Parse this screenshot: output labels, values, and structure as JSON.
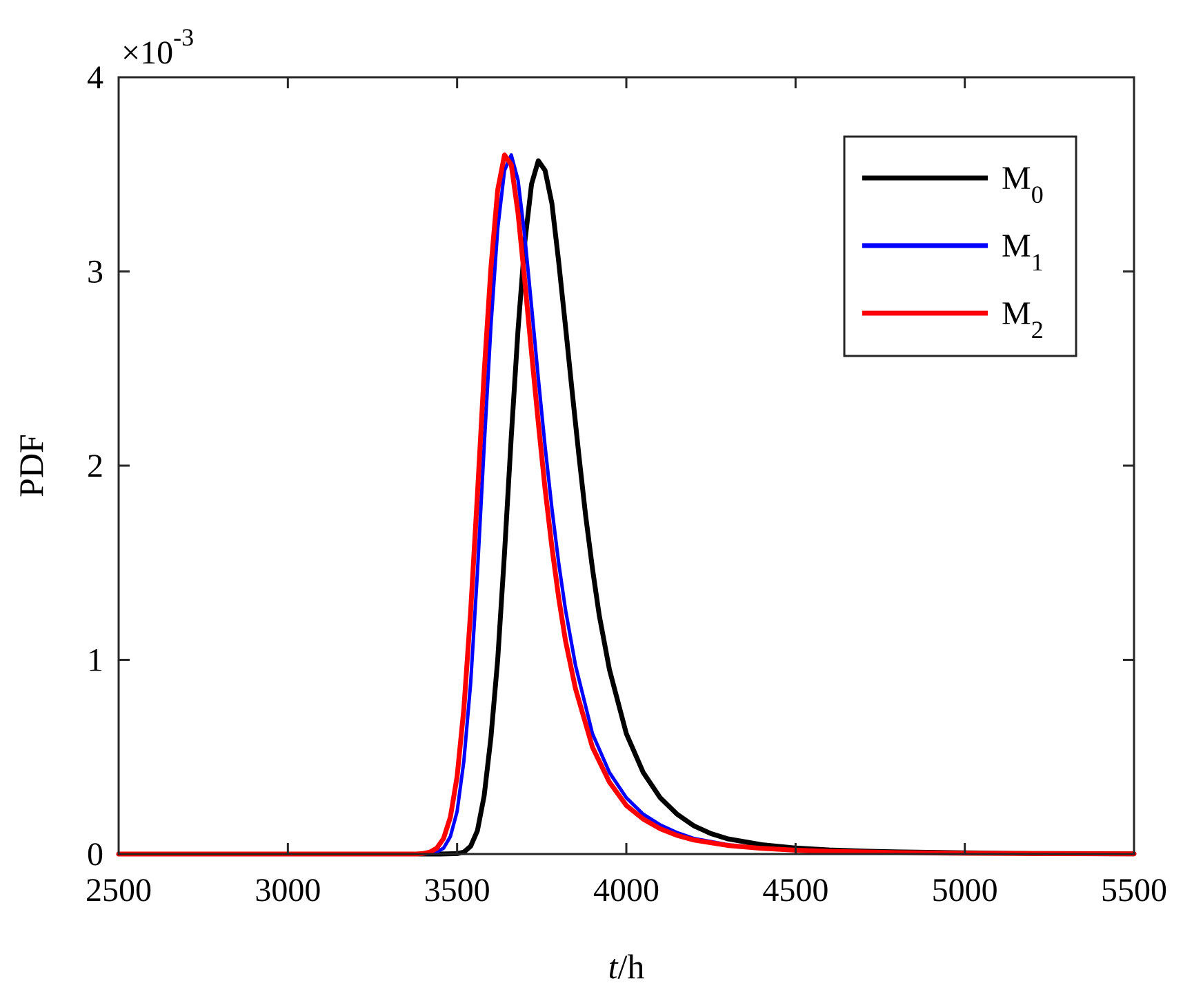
{
  "chart_data": {
    "type": "line",
    "xlabel_italic": "t",
    "xlabel_rest": "/h",
    "ylabel": "PDF",
    "y_multiplier_base": "×10",
    "y_multiplier_exp": "-3",
    "xlim": [
      2500,
      5500
    ],
    "ylim": [
      0,
      4
    ],
    "x_ticks": [
      2500,
      3000,
      3500,
      4000,
      4500,
      5000,
      5500
    ],
    "x_tick_labels": [
      "2500",
      "3000",
      "3500",
      "4000",
      "4500",
      "5000",
      "5500"
    ],
    "y_ticks": [
      0,
      1,
      2,
      3,
      4
    ],
    "y_tick_labels": [
      "0",
      "1",
      "2",
      "3",
      "4"
    ],
    "grid": false,
    "legend_position": "top-right",
    "series": [
      {
        "name": "M",
        "name_sub": "0",
        "color": "#000000",
        "x": [
          2500,
          3000,
          3450,
          3500,
          3520,
          3540,
          3560,
          3580,
          3600,
          3620,
          3640,
          3660,
          3680,
          3700,
          3720,
          3740,
          3760,
          3780,
          3800,
          3820,
          3840,
          3860,
          3880,
          3900,
          3920,
          3950,
          4000,
          4050,
          4100,
          4150,
          4200,
          4250,
          4300,
          4400,
          4500,
          4600,
          4700,
          4800,
          5000,
          5200,
          5500
        ],
        "y": [
          0,
          0,
          0,
          0.002,
          0.01,
          0.04,
          0.12,
          0.3,
          0.6,
          1.0,
          1.55,
          2.15,
          2.7,
          3.15,
          3.45,
          3.57,
          3.52,
          3.35,
          3.05,
          2.72,
          2.38,
          2.05,
          1.74,
          1.47,
          1.23,
          0.95,
          0.62,
          0.42,
          0.29,
          0.205,
          0.145,
          0.105,
          0.078,
          0.048,
          0.031,
          0.021,
          0.015,
          0.011,
          0.006,
          0.003,
          0.001
        ]
      },
      {
        "name": "M",
        "name_sub": "1",
        "color": "#0000ff",
        "x": [
          2500,
          3000,
          3380,
          3420,
          3440,
          3460,
          3480,
          3500,
          3520,
          3540,
          3560,
          3580,
          3600,
          3620,
          3640,
          3660,
          3680,
          3700,
          3720,
          3740,
          3760,
          3780,
          3800,
          3820,
          3850,
          3900,
          3950,
          4000,
          4050,
          4100,
          4150,
          4200,
          4300,
          4400,
          4500,
          4600,
          4800,
          5000,
          5200,
          5500
        ],
        "y": [
          0,
          0,
          0,
          0.002,
          0.01,
          0.03,
          0.09,
          0.22,
          0.48,
          0.88,
          1.45,
          2.1,
          2.72,
          3.22,
          3.52,
          3.6,
          3.47,
          3.18,
          2.82,
          2.45,
          2.1,
          1.78,
          1.5,
          1.26,
          0.97,
          0.62,
          0.42,
          0.29,
          0.205,
          0.15,
          0.11,
          0.08,
          0.048,
          0.031,
          0.021,
          0.015,
          0.008,
          0.005,
          0.002,
          0.001
        ]
      },
      {
        "name": "M",
        "name_sub": "2",
        "color": "#ff0000",
        "x": [
          2500,
          3000,
          3380,
          3400,
          3420,
          3440,
          3460,
          3480,
          3500,
          3520,
          3540,
          3560,
          3580,
          3600,
          3620,
          3640,
          3660,
          3680,
          3700,
          3720,
          3740,
          3760,
          3780,
          3800,
          3820,
          3850,
          3900,
          3950,
          4000,
          4050,
          4100,
          4150,
          4200,
          4300,
          4400,
          4500,
          4600,
          4800,
          5000,
          5200,
          5500
        ],
        "y": [
          0,
          0,
          0,
          0.003,
          0.01,
          0.03,
          0.08,
          0.19,
          0.4,
          0.75,
          1.25,
          1.85,
          2.48,
          3.02,
          3.42,
          3.6,
          3.55,
          3.3,
          2.95,
          2.58,
          2.22,
          1.88,
          1.58,
          1.32,
          1.1,
          0.85,
          0.55,
          0.37,
          0.25,
          0.18,
          0.13,
          0.096,
          0.072,
          0.044,
          0.029,
          0.02,
          0.014,
          0.007,
          0.004,
          0.002,
          0.001
        ]
      }
    ]
  }
}
